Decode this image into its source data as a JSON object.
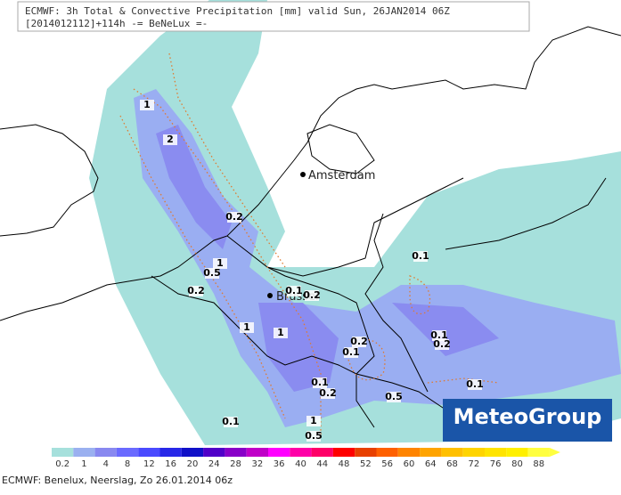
{
  "header": {
    "line1": "ECMWF: 3h Total & Convective Precipitation [mm] valid Sun, 26JAN2014 06Z",
    "line2": "[2014012112]+114h  -= BeNeLux =-"
  },
  "cities": [
    "Amsterdam",
    "Brussel"
  ],
  "contour_labels": [
    "1",
    "2",
    "0.2",
    "1",
    "0.5",
    "0.2",
    "0.1",
    "0.2",
    "1",
    "1",
    "0.2",
    "0.1",
    "0.1",
    "0.1",
    "0.2",
    "0.1",
    "0.2",
    "0.5",
    "0.1",
    "0.1",
    "1",
    "0.5"
  ],
  "legend": [
    "0.2",
    "1",
    "4",
    "8",
    "12",
    "16",
    "20",
    "24",
    "28",
    "32",
    "36",
    "40",
    "44",
    "48",
    "52",
    "56",
    "60",
    "64",
    "68",
    "72",
    "76",
    "80",
    "88"
  ],
  "logo": "MeteoGroup",
  "footer": "ECMWF: Benelux, Neerslag, Zo 26.01.2014 06z"
}
